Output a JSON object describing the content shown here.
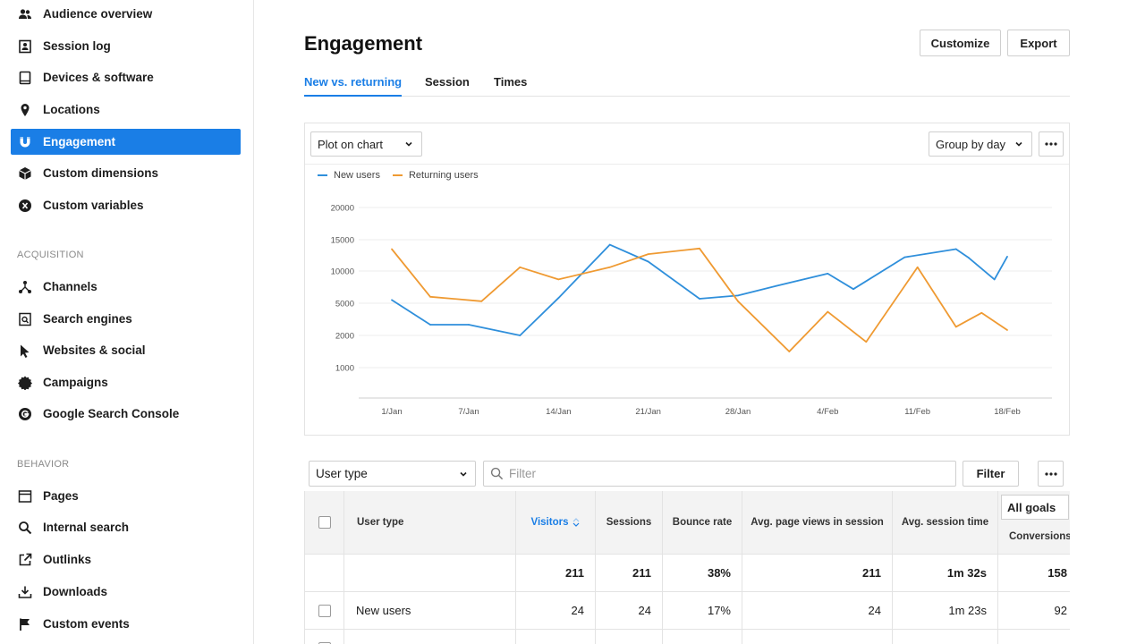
{
  "sidebar": {
    "items": [
      {
        "label": "Audience overview",
        "icon": "users-icon"
      },
      {
        "label": "Session log",
        "icon": "session-log-icon"
      },
      {
        "label": "Devices & software",
        "icon": "tablet-icon"
      },
      {
        "label": "Locations",
        "icon": "map-pin-icon"
      },
      {
        "label": "Engagement",
        "icon": "magnet-icon",
        "active": true
      },
      {
        "label": "Custom dimensions",
        "icon": "cube-icon"
      },
      {
        "label": "Custom variables",
        "icon": "variable-icon"
      }
    ],
    "acquisition_title": "ACQUISITION",
    "acquisition_items": [
      {
        "label": "Channels",
        "icon": "network-icon"
      },
      {
        "label": "Search engines",
        "icon": "search-engine-icon"
      },
      {
        "label": "Websites & social",
        "icon": "cursor-icon"
      },
      {
        "label": "Campaigns",
        "icon": "badge-icon"
      },
      {
        "label": "Google Search Console",
        "icon": "google-icon"
      }
    ],
    "behavior_title": "BEHAVIOR",
    "behavior_items": [
      {
        "label": "Pages",
        "icon": "browser-window-icon"
      },
      {
        "label": "Internal search",
        "icon": "search-icon"
      },
      {
        "label": "Outlinks",
        "icon": "external-link-icon"
      },
      {
        "label": "Downloads",
        "icon": "download-icon"
      },
      {
        "label": "Custom events",
        "icon": "flag-icon"
      }
    ]
  },
  "header": {
    "title": "Engagement",
    "customize_label": "Customize",
    "export_label": "Export"
  },
  "tabs": [
    {
      "label": "New vs. returning",
      "active": true
    },
    {
      "label": "Session"
    },
    {
      "label": "Times"
    }
  ],
  "chart_card": {
    "plot_select": "Plot on chart",
    "group_select": "Group by day"
  },
  "chart_data": {
    "type": "line",
    "y_tick_labels": [
      "20000",
      "15000",
      "10000",
      "5000",
      "2000",
      "1000"
    ],
    "x_tick_labels": [
      "1/Jan",
      "7/Jan",
      "14/Jan",
      "21/Jan",
      "28/Jan",
      "4/Feb",
      "11/Feb",
      "18/Feb"
    ],
    "x_tick_positions": [
      0,
      6,
      13,
      20,
      27,
      34,
      41,
      48
    ],
    "x_range": [
      0,
      48
    ],
    "grid": true,
    "legend": "top-left",
    "series": [
      {
        "name": "New users",
        "color": "#2f8fdb",
        "x": [
          0,
          3,
          6,
          10,
          13,
          17,
          20,
          24,
          27,
          30,
          34,
          36,
          40,
          44,
          45,
          47,
          48
        ],
        "values": [
          5500,
          3000,
          3000,
          2000,
          5800,
          14200,
          11500,
          5700,
          6200,
          7700,
          9600,
          7200,
          12200,
          13500,
          12100,
          8700,
          12300
        ]
      },
      {
        "name": "Returning users",
        "color": "#ef9a32",
        "x": [
          0,
          3,
          7,
          10,
          13,
          17,
          20,
          24,
          27,
          31,
          34,
          37,
          41,
          44,
          46,
          48
        ],
        "values": [
          13500,
          6000,
          5300,
          10600,
          8700,
          10600,
          12700,
          13600,
          5300,
          1500,
          4200,
          1800,
          10600,
          2800,
          4100,
          2500
        ]
      }
    ]
  },
  "table": {
    "dimension_select": "User type",
    "filter_placeholder": "Filter",
    "filter_button": "Filter",
    "columns": {
      "user_type": "User type",
      "visitors": "Visitors",
      "sessions": "Sessions",
      "bounce_rate": "Bounce rate",
      "avg_page_views": "Avg. page views in session",
      "avg_session_time": "Avg. session time",
      "goals_select": "All goals",
      "conversions": "Conversions"
    },
    "totals": {
      "visitors": "211",
      "sessions": "211",
      "bounce_rate": "38%",
      "avg_page_views": "211",
      "avg_session_time": "1m 32s",
      "conversions": "158"
    },
    "rows": [
      {
        "user_type": "New users",
        "visitors": "24",
        "sessions": "24",
        "bounce_rate": "17%",
        "avg_page_views": "24",
        "avg_session_time": "1m 23s",
        "conversions": "92"
      }
    ]
  }
}
